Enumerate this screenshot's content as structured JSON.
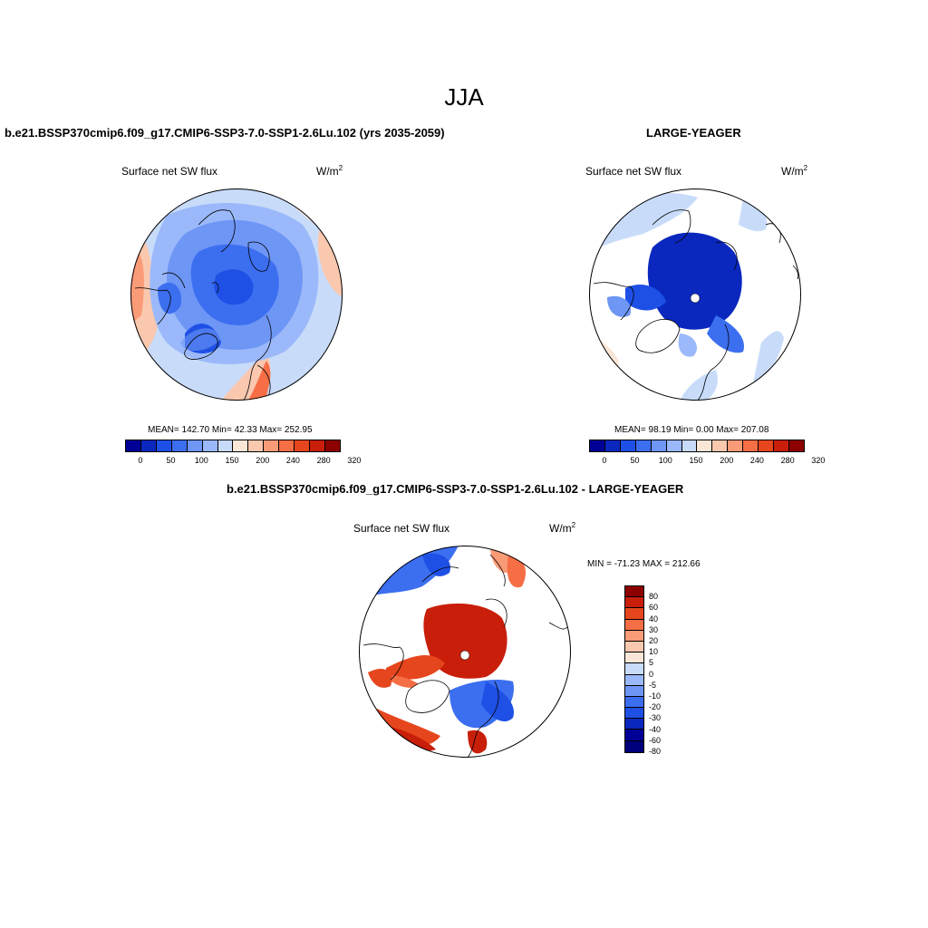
{
  "title": "JJA",
  "panel1": {
    "title": "b.e21.BSSP370cmip6.f09_g17.CMIP6-SSP3-7.0-SSP1-2.6Lu.102 (yrs 2035-2059)",
    "variable": "Surface net SW flux",
    "units": "W/m",
    "units_sup": "2",
    "stats": "MEAN= 142.70  Min=  42.33  Max= 252.95"
  },
  "panel2": {
    "title": "LARGE-YEAGER",
    "variable": "Surface net SW flux",
    "units": "W/m",
    "units_sup": "2",
    "stats": "MEAN=  98.19  Min=   0.00  Max= 207.08"
  },
  "panel3": {
    "title": "b.e21.BSSP370cmip6.f09_g17.CMIP6-SSP3-7.0-SSP1-2.6Lu.102 - LARGE-YEAGER",
    "variable": "Surface net SW flux",
    "units": "W/m",
    "units_sup": "2",
    "minmax": "MIN = -71.23 MAX = 212.66"
  },
  "colorbar_abs": {
    "colors": [
      "#000096",
      "#0a28be",
      "#1e50e6",
      "#3c6ef0",
      "#6e96f5",
      "#9bb9fa",
      "#c8dcfa",
      "#fae6d7",
      "#fac8af",
      "#fa9b78",
      "#f56e46",
      "#e6461e",
      "#c81e0a",
      "#8c0000"
    ],
    "tick_labels": [
      "0",
      "50",
      "100",
      "150",
      "200",
      "240",
      "280",
      "320"
    ]
  },
  "colorbar_diff": {
    "colors": [
      "#8c0000",
      "#c81e0a",
      "#e6461e",
      "#f56e46",
      "#fa9b78",
      "#fac8af",
      "#fae6d7",
      "#c8dcfa",
      "#9bb9fa",
      "#6e96f5",
      "#3c6ef0",
      "#1e50e6",
      "#0a28be",
      "#000096",
      "#00007a"
    ],
    "tick_labels": [
      "80",
      "60",
      "40",
      "30",
      "20",
      "10",
      "5",
      "0",
      "-5",
      "-10",
      "-20",
      "-30",
      "-40",
      "-60",
      "-80"
    ]
  },
  "chart_data": [
    {
      "type": "heatmap",
      "projection": "north polar stereographic",
      "title": "b.e21.BSSP370cmip6.f09_g17.CMIP6-SSP3-7.0-SSP1-2.6Lu.102 (yrs 2035-2059)",
      "variable": "Surface net SW flux",
      "units": "W/m2",
      "mean": 142.7,
      "min": 42.33,
      "max": 252.95
    },
    {
      "type": "heatmap",
      "projection": "north polar stereographic",
      "title": "LARGE-YEAGER",
      "variable": "Surface net SW flux",
      "units": "W/m2",
      "mean": 98.19,
      "min": 0.0,
      "max": 207.08
    },
    {
      "type": "heatmap",
      "projection": "north polar stereographic",
      "title": "b.e21.BSSP370cmip6.f09_g17.CMIP6-SSP3-7.0-SSP1-2.6Lu.102 - LARGE-YEAGER",
      "variable": "Surface net SW flux",
      "units": "W/m2",
      "min": -71.23,
      "max": 212.66
    }
  ]
}
